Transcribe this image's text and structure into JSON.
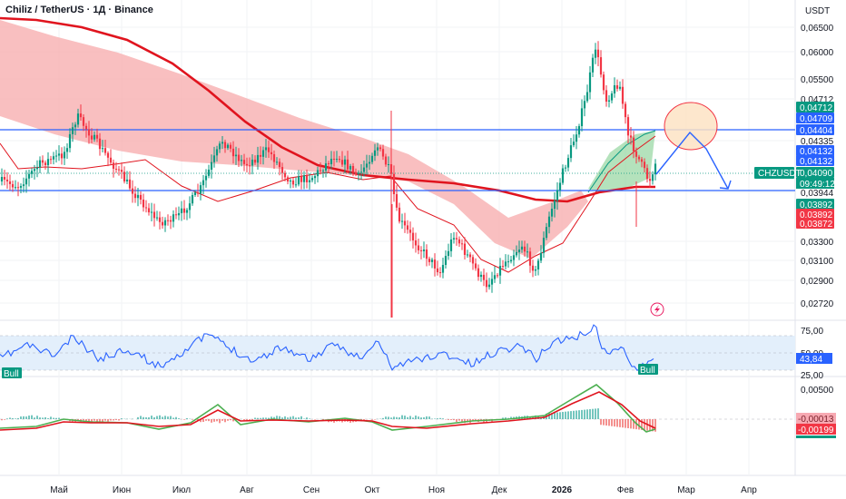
{
  "header": {
    "title": "Chiliz / TetherUS · 1Д · Binance",
    "currency": "USDT"
  },
  "colors": {
    "up": "#089981",
    "down": "#f23645",
    "ma_red": "#e0141e",
    "band": "#f7a9ab",
    "band_green": "#9bd8a6",
    "blue": "#2962ff",
    "rsi_line": "#2962ff",
    "rsi_fill": "#e3effb",
    "macd_green": "#4caf50"
  },
  "chart_data": [
    {
      "type": "line",
      "name": "price",
      "price_ticks": [
        "0,06500",
        "0,06000",
        "0,05500",
        "0,04712",
        "0,04335",
        "0,03944",
        "0,03300",
        "0,03100",
        "0,02900",
        "0,02720"
      ],
      "x_ticks": [
        "Май",
        "Июн",
        "Июл",
        "Авг",
        "Сен",
        "Окт",
        "Ноя",
        "Дек",
        "2026",
        "Фев",
        "Мар",
        "Апр"
      ],
      "horizontal_levels": [
        0.04404,
        0.03944
      ],
      "last_price": "0,04090",
      "countdown": "09:49:12",
      "symbol_label": "CHZUSDT",
      "price_tags": [
        {
          "text": "0,04712",
          "color": "#089981"
        },
        {
          "text": "0,04709",
          "color": "#2962ff"
        },
        {
          "text": "0,04404",
          "color": "#2962ff"
        },
        {
          "text": "0,04132",
          "color": "#2962ff"
        },
        {
          "text": "0,04132",
          "color": "#2962ff"
        },
        {
          "text": "0,04090",
          "color": "#089981"
        },
        {
          "text": "0,03892",
          "color": "#089981"
        },
        {
          "text": "0,03892",
          "color": "#f23645"
        },
        {
          "text": "0,03872",
          "color": "#f23645"
        }
      ]
    },
    {
      "type": "line",
      "name": "RSI",
      "ticks": [
        "75,00",
        "50,00",
        "25,00"
      ],
      "value": "43,84",
      "labels": [
        "Bull",
        "Bull"
      ]
    },
    {
      "type": "bar",
      "name": "MACD",
      "ticks": [
        "0,00500"
      ],
      "values": [
        "-0,00013",
        "-0,00199"
      ]
    }
  ]
}
